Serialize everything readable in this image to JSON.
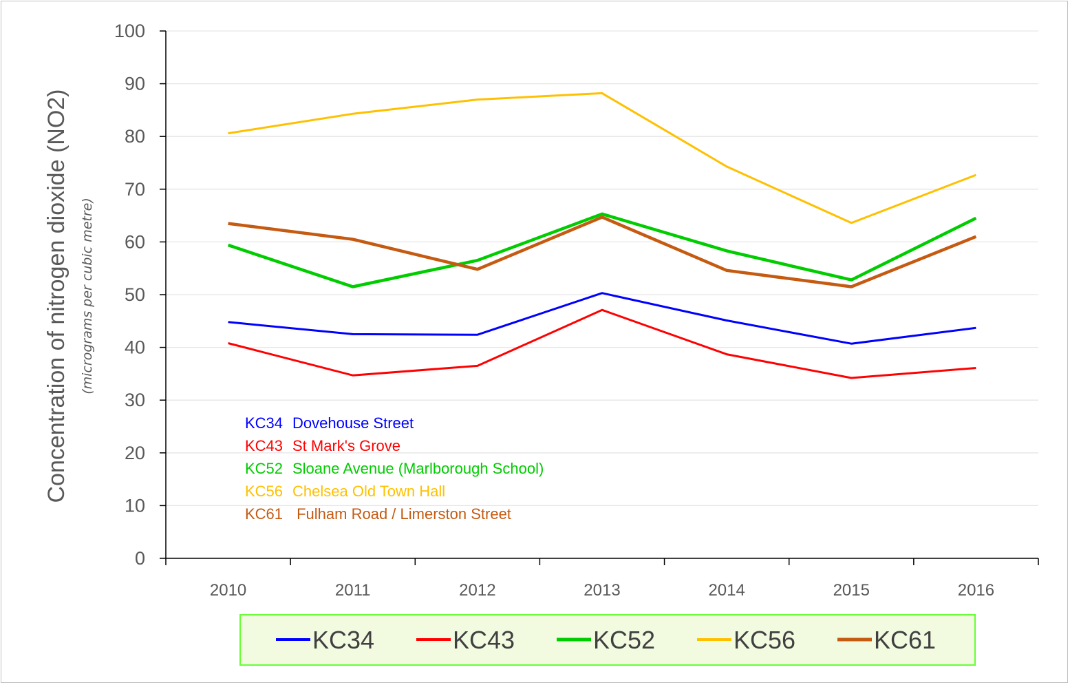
{
  "chart_data": {
    "type": "line",
    "categories": [
      "2010",
      "2011",
      "2012",
      "2013",
      "2014",
      "2015",
      "2016"
    ],
    "ylabel": "Concentration of nitrogen dioxide (NO2)",
    "ylabel_sub": "(micrograms per cubic metre)",
    "ylim": [
      0,
      100
    ],
    "yticks": [
      "0",
      "10",
      "20",
      "30",
      "40",
      "50",
      "60",
      "70",
      "80",
      "90",
      "100"
    ],
    "grid": true,
    "legend_position": "bottom",
    "series": [
      {
        "name": "KC34",
        "color": "#0000ff",
        "values": [
          44.8,
          42.5,
          42.4,
          50.3,
          45.1,
          40.7,
          43.7
        ]
      },
      {
        "name": "KC43",
        "color": "#ff0000",
        "values": [
          40.8,
          34.7,
          36.5,
          47.1,
          38.7,
          34.2,
          36.1
        ]
      },
      {
        "name": "KC52",
        "color": "#00cc00",
        "values": [
          59.4,
          51.5,
          56.5,
          65.3,
          58.3,
          52.8,
          64.5
        ]
      },
      {
        "name": "KC56",
        "color": "#ffc000",
        "values": [
          80.6,
          84.3,
          87.0,
          88.2,
          74.3,
          63.6,
          72.7
        ]
      },
      {
        "name": "KC61",
        "color": "#c55a11",
        "values": [
          63.5,
          60.5,
          54.8,
          64.7,
          54.6,
          51.5,
          61.0
        ]
      }
    ],
    "annotations": [
      {
        "code": "KC34",
        "text": "Dovehouse Street",
        "color": "#0000ff"
      },
      {
        "code": "KC43",
        "text": "St Mark's Grove",
        "color": "#ff0000"
      },
      {
        "code": "KC52",
        "text": "Sloane Avenue (Marlborough School)",
        "color": "#00cc00"
      },
      {
        "code": "KC56",
        "text": "Chelsea Old Town Hall",
        "color": "#ffc000"
      },
      {
        "code": "KC61",
        "text": " Fulham Road / Limerston Street",
        "color": "#c55a11"
      }
    ],
    "legend_style": {
      "background": "#f2fbe0",
      "border": "#66ff33"
    }
  }
}
